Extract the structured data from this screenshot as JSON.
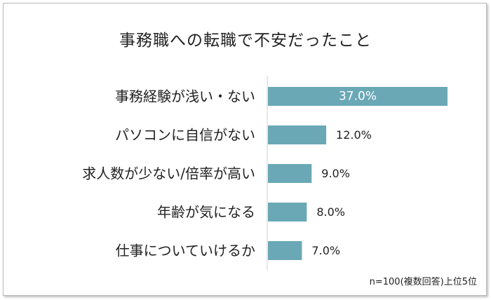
{
  "title": "事務職への転職で不安だったこと",
  "note": "n=100(複数回答)上位5位",
  "colors": {
    "bar": "#6aa8b6",
    "inside_label": "#ffffff",
    "text": "#222222",
    "axis": "#cfcfcf"
  },
  "chart_data": {
    "type": "bar",
    "orientation": "horizontal",
    "title": "事務職への転職で不安だったこと",
    "categories": [
      "事務経験が浅い・ない",
      "パソコンに自信がない",
      "求人数が少ない/倍率が高い",
      "年齢が気になる",
      "仕事についていけるか"
    ],
    "values": [
      37.0,
      12.0,
      9.0,
      8.0,
      7.0
    ],
    "value_labels": [
      "37.0%",
      "12.0%",
      "9.0%",
      "8.0%",
      "7.0%"
    ],
    "xlim": [
      0,
      37.0
    ],
    "grid": false,
    "legend": "none"
  }
}
